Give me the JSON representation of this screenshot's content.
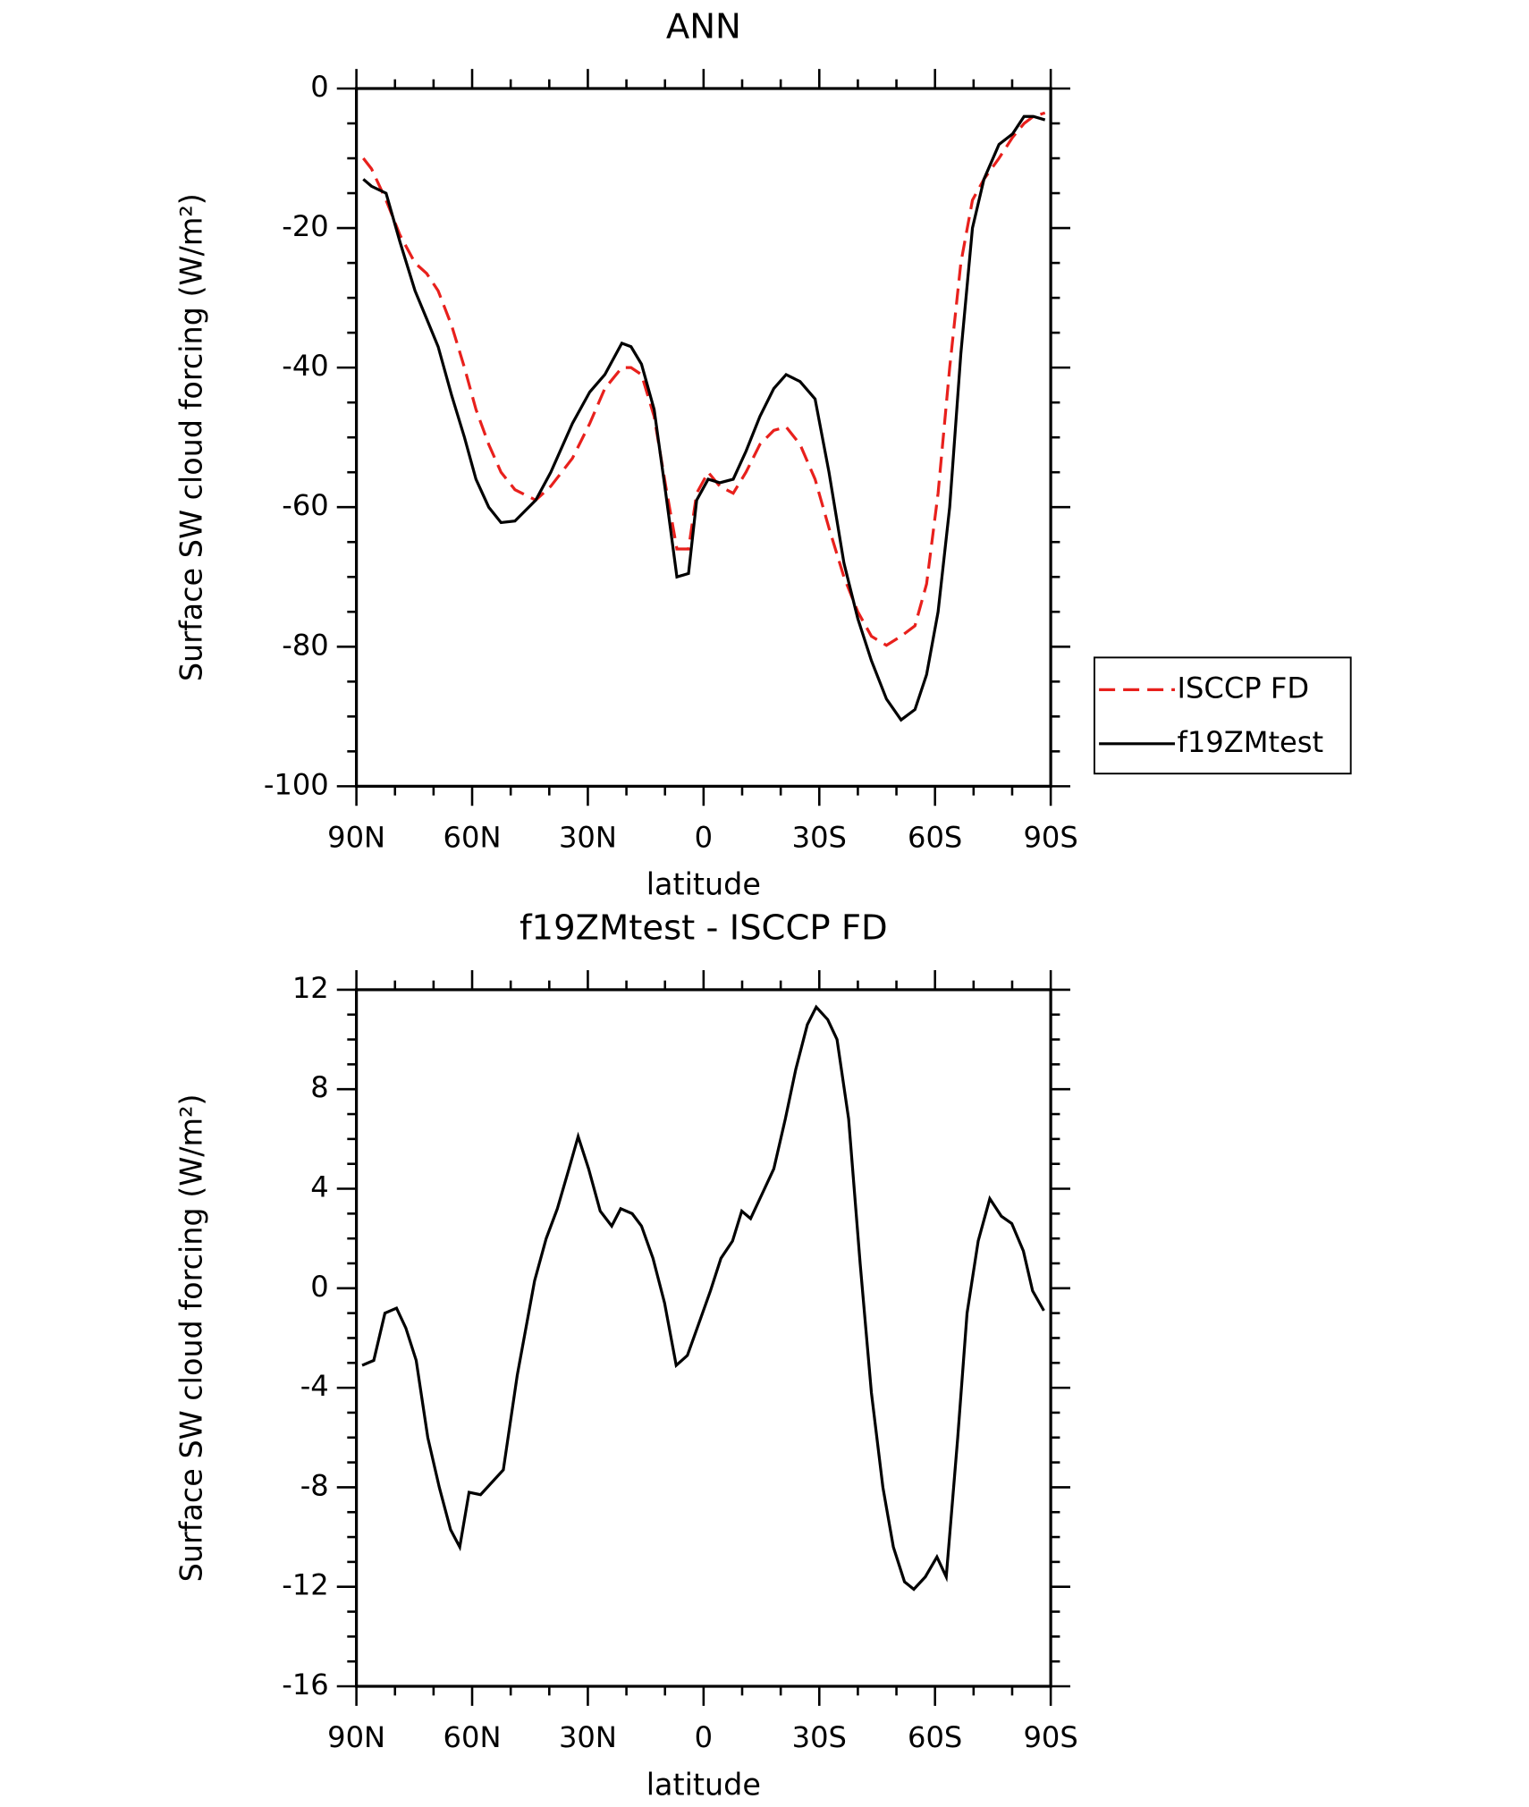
{
  "chart_data": [
    {
      "type": "line",
      "title": "ANN",
      "xlabel": "latitude",
      "ylabel": "Surface SW cloud forcing (W/m²)",
      "x": [
        88.2,
        86.1,
        82.3,
        78.7,
        74.8,
        71.8,
        68.8,
        65.3,
        62.0,
        59.0,
        55.7,
        52.5,
        48.9,
        43.5,
        39.6,
        34.0,
        29.5,
        25.6,
        21.2,
        18.8,
        16.1,
        12.8,
        9.8,
        6.9,
        3.9,
        1.8,
        -1.2,
        -4.2,
        -7.7,
        -11.0,
        -14.6,
        -18.2,
        -21.4,
        -25.0,
        -28.9,
        -32.5,
        -36.4,
        -40.0,
        -43.5,
        -47.4,
        -51.2,
        -54.8,
        -57.8,
        -60.8,
        -63.8,
        -66.7,
        -69.7,
        -72.7,
        -76.6,
        -80.1,
        -83.1,
        -85.5,
        -88.5
      ],
      "series": [
        {
          "name": "ISCCP FD",
          "color": "#e8201c",
          "linestyle": "dashed",
          "values": [
            -10,
            -11.5,
            -16,
            -21,
            -25,
            -26.5,
            -29,
            -34,
            -40,
            -46,
            -51,
            -55,
            -57.5,
            -59,
            -57,
            -53,
            -48,
            -43,
            -40,
            -40,
            -41,
            -47,
            -57,
            -66,
            -66,
            -58,
            -55,
            -57,
            -58,
            -55,
            -51,
            -49,
            -48.5,
            -51,
            -56,
            -63,
            -70,
            -75,
            -78.5,
            -79.8,
            -78.5,
            -77,
            -71,
            -58,
            -40,
            -25,
            -16,
            -13,
            -10,
            -7,
            -5,
            -4,
            -3.5
          ]
        },
        {
          "name": "f19ZMtest",
          "color": "#000000",
          "linestyle": "solid",
          "values": [
            -13,
            -14,
            -15,
            -22,
            -29,
            -33,
            -37,
            -44,
            -50,
            -56,
            -60,
            -62.2,
            -62,
            -59,
            -55,
            -48,
            -43.5,
            -41,
            -36.5,
            -37,
            -39.5,
            -46,
            -58,
            -70,
            -69.5,
            -59,
            -56,
            -56.5,
            -56,
            -52,
            -47,
            -43,
            -41,
            -42,
            -44.5,
            -55,
            -68,
            -76,
            -82,
            -87.5,
            -90.5,
            -89,
            -84,
            -75,
            -60,
            -38,
            -20,
            -13,
            -8,
            -6.5,
            -4,
            -4,
            -4.5
          ]
        }
      ],
      "xlim": [
        90,
        -90
      ],
      "xticks": [
        {
          "value": 90,
          "label": "90N"
        },
        {
          "value": 60,
          "label": "60N"
        },
        {
          "value": 30,
          "label": "30N"
        },
        0,
        {
          "value": -30,
          "label": "30S"
        },
        {
          "value": -60,
          "label": "60S"
        },
        {
          "value": -90,
          "label": "90S"
        }
      ],
      "xminor": [
        80,
        70,
        50,
        40,
        20,
        10,
        -10,
        -20,
        -40,
        -50,
        -70,
        -80
      ],
      "ylim": [
        -100,
        0
      ],
      "yticks": [
        0,
        -20,
        -40,
        -60,
        -80,
        -100
      ],
      "yminor": [
        -5,
        -10,
        -15,
        -25,
        -30,
        -35,
        -45,
        -50,
        -55,
        -65,
        -70,
        -75,
        -85,
        -90,
        -95
      ],
      "legend": "right"
    },
    {
      "type": "line",
      "title": "f19ZMtest - ISCCP FD",
      "xlabel": "latitude",
      "ylabel": "Surface SW cloud forcing (W/m²)",
      "x": [
        88.5,
        85.5,
        82.6,
        79.6,
        77.2,
        74.5,
        71.5,
        68.5,
        65.6,
        63.2,
        60.8,
        57.8,
        51.9,
        48.3,
        43.8,
        40.8,
        37.9,
        34.9,
        32.5,
        29.8,
        26.8,
        23.8,
        21.5,
        18.5,
        16.1,
        13.1,
        10.1,
        7.1,
        4.2,
        1.2,
        -1.8,
        -4.5,
        -7.5,
        -9.9,
        -12.2,
        -15.2,
        -18.2,
        -21.2,
        -23.9,
        -26.9,
        -29.2,
        -32.2,
        -34.6,
        -37.6,
        -40.6,
        -43.5,
        -46.5,
        -49.2,
        -52.1,
        -54.5,
        -57.5,
        -60.5,
        -62.9,
        -65.9,
        -68.3,
        -71.2,
        -74.2,
        -77.2,
        -79.9,
        -82.9,
        -85.3,
        -88.2
      ],
      "series": [
        {
          "name": "f19ZMtest - ISCCP FD",
          "color": "#000000",
          "linestyle": "solid",
          "values": [
            -3.1,
            -2.9,
            -1,
            -0.8,
            -1.6,
            -2.9,
            -6,
            -8,
            -9.7,
            -10.4,
            -8.2,
            -8.3,
            -7.3,
            -3.5,
            0.3,
            2,
            3.2,
            4.8,
            6.1,
            4.8,
            3.1,
            2.5,
            3.2,
            3,
            2.5,
            1.2,
            -0.6,
            -3.1,
            -2.7,
            -1.4,
            -0.1,
            1.2,
            1.9,
            3.1,
            2.8,
            3.8,
            4.8,
            6.8,
            8.8,
            10.6,
            11.3,
            10.8,
            10,
            6.8,
            1,
            -4.2,
            -8,
            -10.4,
            -11.8,
            -12.1,
            -11.6,
            -10.8,
            -11.6,
            -6,
            -1,
            1.9,
            3.6,
            2.9,
            2.6,
            1.5,
            -0.1,
            -0.9
          ]
        }
      ],
      "xlim": [
        90,
        -90
      ],
      "xticks": [
        {
          "value": 90,
          "label": "90N"
        },
        {
          "value": 60,
          "label": "60N"
        },
        {
          "value": 30,
          "label": "30N"
        },
        0,
        {
          "value": -30,
          "label": "30S"
        },
        {
          "value": -60,
          "label": "60S"
        },
        {
          "value": -90,
          "label": "90S"
        }
      ],
      "xminor": [
        80,
        70,
        50,
        40,
        20,
        10,
        -10,
        -20,
        -40,
        -50,
        -70,
        -80
      ],
      "ylim": [
        -16,
        12
      ],
      "yticks": [
        12,
        8,
        4,
        0,
        -4,
        -8,
        -12,
        -16
      ],
      "yminor": [
        11,
        10,
        9,
        7,
        6,
        5,
        3,
        2,
        1,
        -1,
        -2,
        -3,
        -5,
        -6,
        -7,
        -9,
        -10,
        -11,
        -13,
        -14,
        -15
      ]
    }
  ]
}
